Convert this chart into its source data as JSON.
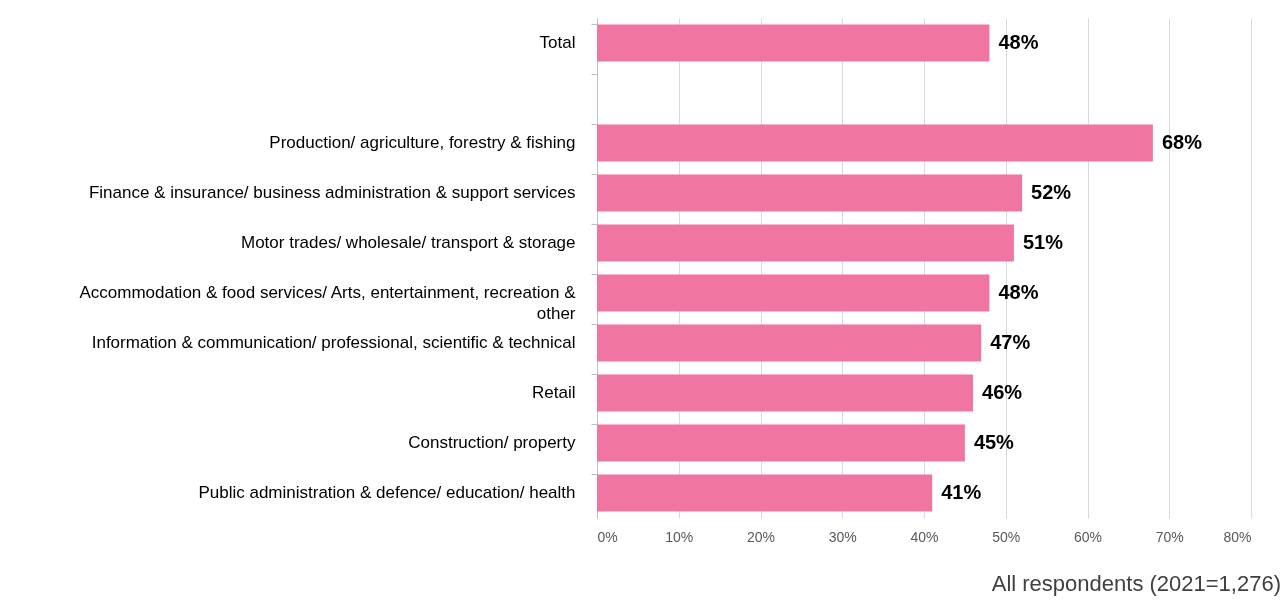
{
  "chart_data": {
    "type": "bar",
    "orientation": "horizontal",
    "categories": [
      "Total",
      null,
      "Production/ agriculture, forestry & fishing",
      "Finance & insurance/ business administration & support services",
      "Motor trades/ wholesale/ transport & storage",
      "Accommodation & food services/ Arts, entertainment, recreation & other",
      "Information & communication/ professional, scientific & technical",
      "Retail",
      "Construction/ property",
      "Public administration & defence/ education/ health"
    ],
    "values": [
      48,
      null,
      68,
      52,
      51,
      48,
      47,
      46,
      45,
      41
    ],
    "value_labels": [
      "48%",
      null,
      "68%",
      "52%",
      "51%",
      "48%",
      "47%",
      "46%",
      "45%",
      "41%"
    ],
    "color": "#f075a2",
    "xlim": [
      0,
      80
    ],
    "xticks": [
      {
        "value": 0,
        "label": "0%"
      },
      {
        "value": 10,
        "label": "10%"
      },
      {
        "value": 20,
        "label": "20%"
      },
      {
        "value": 30,
        "label": "30%"
      },
      {
        "value": 40,
        "label": "40%"
      },
      {
        "value": 50,
        "label": "50%"
      },
      {
        "value": 60,
        "label": "60%"
      },
      {
        "value": 70,
        "label": "70%"
      },
      {
        "value": 80,
        "label": "80%"
      }
    ],
    "grid": "x",
    "annotations": [
      "All respondents (2021=1,276)"
    ]
  }
}
